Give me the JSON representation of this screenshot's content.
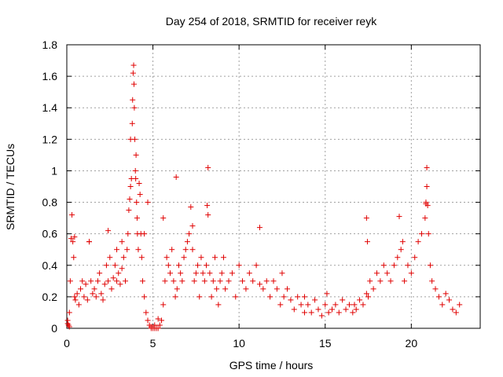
{
  "chart_data": {
    "type": "scatter",
    "title": "Day 254 of 2018, SRMTID for receiver reyk",
    "xlabel": "GPS time / hours",
    "ylabel": "SRMTID / TECUs",
    "xlim": [
      0,
      24
    ],
    "ylim": [
      0,
      1.8
    ],
    "xticks": [
      "0",
      "5",
      "10",
      "15",
      "20"
    ],
    "yticks": [
      "0",
      "0.2",
      "0.4",
      "0.6",
      "0.8",
      "1",
      "1.2",
      "1.4",
      "1.6",
      "1.8"
    ],
    "grid": true,
    "marker": "+",
    "marker_color": "#e00000",
    "series": [
      {
        "name": "reyk",
        "x": [
          0.05,
          0.1,
          0.15,
          0.2,
          0.3,
          0.35,
          0.4,
          0.45,
          0.5,
          0.6,
          0.7,
          0.8,
          0.9,
          1.0,
          1.1,
          1.2,
          1.3,
          1.4,
          1.5,
          1.6,
          1.7,
          1.8,
          1.9,
          2.0,
          2.1,
          2.2,
          2.3,
          2.4,
          2.5,
          2.6,
          2.7,
          2.8,
          2.9,
          3.0,
          3.1,
          3.2,
          3.3,
          3.4,
          3.5,
          3.55,
          3.6,
          3.65,
          3.7,
          3.75,
          3.8,
          3.82,
          3.85,
          3.88,
          3.9,
          3.92,
          3.95,
          3.98,
          4.0,
          4.02,
          4.05,
          4.08,
          4.1,
          4.15,
          4.2,
          4.25,
          4.3,
          4.35,
          4.4,
          4.5,
          4.6,
          4.7,
          4.8,
          4.9,
          5.0,
          5.1,
          5.2,
          5.3,
          5.4,
          5.5,
          5.6,
          5.7,
          5.8,
          5.9,
          6.0,
          6.1,
          6.2,
          6.3,
          6.4,
          6.5,
          6.6,
          6.7,
          6.8,
          6.9,
          7.0,
          7.1,
          7.2,
          7.3,
          7.4,
          7.5,
          7.6,
          7.7,
          7.8,
          7.9,
          8.0,
          8.1,
          8.2,
          8.3,
          8.4,
          8.5,
          8.6,
          8.7,
          8.8,
          8.9,
          9.0,
          9.2,
          9.4,
          9.6,
          9.8,
          10.0,
          10.2,
          10.4,
          10.6,
          10.8,
          11.0,
          11.2,
          11.4,
          11.6,
          11.8,
          12.0,
          12.2,
          12.4,
          12.6,
          12.8,
          13.0,
          13.2,
          13.4,
          13.6,
          13.8,
          14.0,
          14.2,
          14.4,
          14.6,
          14.8,
          15.0,
          15.2,
          15.4,
          15.6,
          15.8,
          16.0,
          16.2,
          16.4,
          16.6,
          16.8,
          17.0,
          17.2,
          17.4,
          17.5,
          17.6,
          17.8,
          18.0,
          18.2,
          18.4,
          18.6,
          18.8,
          19.0,
          19.2,
          19.4,
          19.5,
          19.6,
          19.8,
          20.0,
          20.2,
          20.4,
          20.6,
          20.8,
          20.85,
          20.9,
          20.95,
          21.0,
          21.1,
          21.2,
          21.4,
          21.6,
          21.8,
          22.0,
          22.2,
          22.4,
          22.6,
          22.8,
          0.25,
          0.45,
          1.3,
          2.4,
          2.9,
          3.2,
          3.7,
          4.5,
          5.6,
          6.35,
          7.3,
          8.2,
          8.15,
          9.1,
          11.2,
          17.4,
          17.45,
          19.3,
          20.9,
          20.85,
          0.05,
          0.15,
          4.7,
          4.9,
          5.1,
          5.3,
          12.5,
          13.8,
          15.1,
          16.7
        ],
        "y": [
          0.05,
          0.02,
          0.1,
          0.3,
          0.72,
          0.55,
          0.45,
          0.2,
          0.18,
          0.22,
          0.15,
          0.25,
          0.3,
          0.2,
          0.28,
          0.18,
          0.55,
          0.3,
          0.22,
          0.25,
          0.2,
          0.3,
          0.35,
          0.22,
          0.18,
          0.28,
          0.4,
          0.3,
          0.45,
          0.25,
          0.32,
          0.4,
          0.3,
          0.35,
          0.28,
          0.38,
          0.45,
          0.3,
          0.5,
          0.6,
          0.75,
          0.82,
          0.9,
          0.95,
          1.3,
          1.45,
          1.62,
          1.67,
          1.55,
          1.4,
          1.2,
          1.0,
          0.95,
          1.1,
          0.8,
          0.7,
          0.6,
          0.5,
          0.92,
          0.85,
          0.6,
          0.45,
          0.3,
          0.2,
          0.1,
          0.05,
          0.02,
          0.0,
          0.0,
          0.0,
          0.0,
          0.0,
          0.02,
          0.05,
          0.15,
          0.3,
          0.45,
          0.4,
          0.35,
          0.5,
          0.3,
          0.2,
          0.25,
          0.4,
          0.35,
          0.3,
          0.45,
          0.5,
          0.55,
          0.6,
          0.77,
          0.5,
          0.3,
          0.35,
          0.4,
          0.2,
          0.45,
          0.35,
          0.3,
          0.4,
          0.72,
          0.35,
          0.2,
          0.3,
          0.45,
          0.25,
          0.15,
          0.3,
          0.35,
          0.25,
          0.3,
          0.35,
          0.2,
          0.4,
          0.3,
          0.25,
          0.35,
          0.3,
          0.4,
          0.28,
          0.25,
          0.3,
          0.2,
          0.3,
          0.25,
          0.15,
          0.2,
          0.25,
          0.18,
          0.12,
          0.2,
          0.15,
          0.1,
          0.15,
          0.1,
          0.18,
          0.12,
          0.08,
          0.15,
          0.1,
          0.12,
          0.15,
          0.1,
          0.18,
          0.12,
          0.15,
          0.1,
          0.12,
          0.18,
          0.15,
          0.22,
          0.2,
          0.3,
          0.25,
          0.35,
          0.3,
          0.4,
          0.35,
          0.3,
          0.4,
          0.45,
          0.5,
          0.55,
          0.3,
          0.4,
          0.35,
          0.45,
          0.55,
          0.6,
          0.7,
          0.8,
          0.9,
          0.78,
          0.6,
          0.4,
          0.3,
          0.25,
          0.2,
          0.15,
          0.22,
          0.18,
          0.12,
          0.1,
          0.15,
          0.57,
          0.58,
          0.55,
          0.62,
          0.5,
          0.55,
          1.2,
          0.6,
          0.7,
          0.96,
          0.65,
          1.02,
          0.78,
          0.45,
          0.64,
          0.7,
          0.55,
          0.71,
          1.02,
          0.79,
          0.03,
          0.01,
          0.8,
          0.01,
          0.02,
          0.06,
          0.35,
          0.2,
          0.22,
          0.15
        ]
      }
    ]
  }
}
